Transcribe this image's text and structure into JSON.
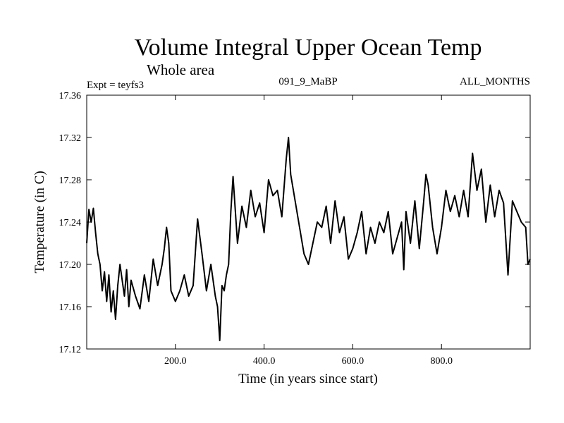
{
  "chart_data": {
    "type": "line",
    "title": "Volume Integral Upper Ocean Temp",
    "subtitle": "Whole area",
    "experiment_label": "Expt = teyfs3",
    "center_label": "091_9_MaBP",
    "right_label": "ALL_MONTHS",
    "xlabel": "Time (in years since start)",
    "ylabel": "Temperature (in C)",
    "xlim": [
      0,
      1000
    ],
    "ylim": [
      17.12,
      17.36
    ],
    "xticks": [
      {
        "value": 200,
        "label": "200.0"
      },
      {
        "value": 400,
        "label": "400.0"
      },
      {
        "value": 600,
        "label": "600.0"
      },
      {
        "value": 800,
        "label": "800.0"
      }
    ],
    "yticks": [
      {
        "value": 17.12,
        "label": "17.12"
      },
      {
        "value": 17.16,
        "label": "17.16"
      },
      {
        "value": 17.2,
        "label": "17.20"
      },
      {
        "value": 17.24,
        "label": "17.24"
      },
      {
        "value": 17.28,
        "label": "17.28"
      },
      {
        "value": 17.32,
        "label": "17.32"
      },
      {
        "value": 17.36,
        "label": "17.36"
      }
    ],
    "series": [
      {
        "name": "teyfs3",
        "x": [
          0,
          5,
          10,
          15,
          20,
          25,
          30,
          35,
          40,
          45,
          50,
          55,
          60,
          65,
          70,
          75,
          80,
          85,
          90,
          95,
          100,
          110,
          120,
          130,
          140,
          150,
          160,
          170,
          175,
          180,
          185,
          190,
          200,
          210,
          220,
          230,
          240,
          250,
          260,
          270,
          280,
          290,
          295,
          300,
          305,
          310,
          315,
          320,
          325,
          330,
          340,
          350,
          360,
          370,
          380,
          390,
          400,
          410,
          420,
          430,
          440,
          450,
          455,
          460,
          470,
          480,
          490,
          500,
          510,
          520,
          530,
          540,
          550,
          560,
          570,
          580,
          590,
          600,
          610,
          620,
          630,
          640,
          650,
          660,
          670,
          680,
          690,
          700,
          710,
          715,
          720,
          730,
          740,
          750,
          760,
          765,
          770,
          780,
          790,
          800,
          810,
          820,
          830,
          840,
          850,
          860,
          870,
          880,
          890,
          900,
          910,
          920,
          930,
          940,
          950,
          960,
          970,
          980,
          990,
          995,
          1000
        ],
        "values": [
          17.22,
          17.252,
          17.24,
          17.253,
          17.23,
          17.21,
          17.2,
          17.175,
          17.193,
          17.165,
          17.19,
          17.155,
          17.175,
          17.148,
          17.18,
          17.2,
          17.185,
          17.17,
          17.195,
          17.16,
          17.185,
          17.17,
          17.158,
          17.19,
          17.165,
          17.205,
          17.18,
          17.2,
          17.215,
          17.235,
          17.22,
          17.175,
          17.165,
          17.175,
          17.19,
          17.17,
          17.18,
          17.243,
          17.21,
          17.175,
          17.2,
          17.17,
          17.16,
          17.128,
          17.18,
          17.175,
          17.19,
          17.2,
          17.25,
          17.283,
          17.22,
          17.255,
          17.235,
          17.27,
          17.245,
          17.258,
          17.23,
          17.28,
          17.265,
          17.27,
          17.245,
          17.3,
          17.32,
          17.285,
          17.26,
          17.235,
          17.21,
          17.2,
          17.22,
          17.24,
          17.235,
          17.255,
          17.22,
          17.26,
          17.23,
          17.245,
          17.205,
          17.215,
          17.23,
          17.25,
          17.21,
          17.235,
          17.22,
          17.24,
          17.23,
          17.25,
          17.21,
          17.225,
          17.24,
          17.195,
          17.25,
          17.22,
          17.26,
          17.215,
          17.26,
          17.285,
          17.275,
          17.235,
          17.21,
          17.235,
          17.27,
          17.25,
          17.265,
          17.245,
          17.27,
          17.245,
          17.305,
          17.27,
          17.29,
          17.24,
          17.275,
          17.245,
          17.27,
          17.258,
          17.19,
          17.26,
          17.25,
          17.24,
          17.235,
          17.2,
          17.205
        ]
      }
    ]
  }
}
